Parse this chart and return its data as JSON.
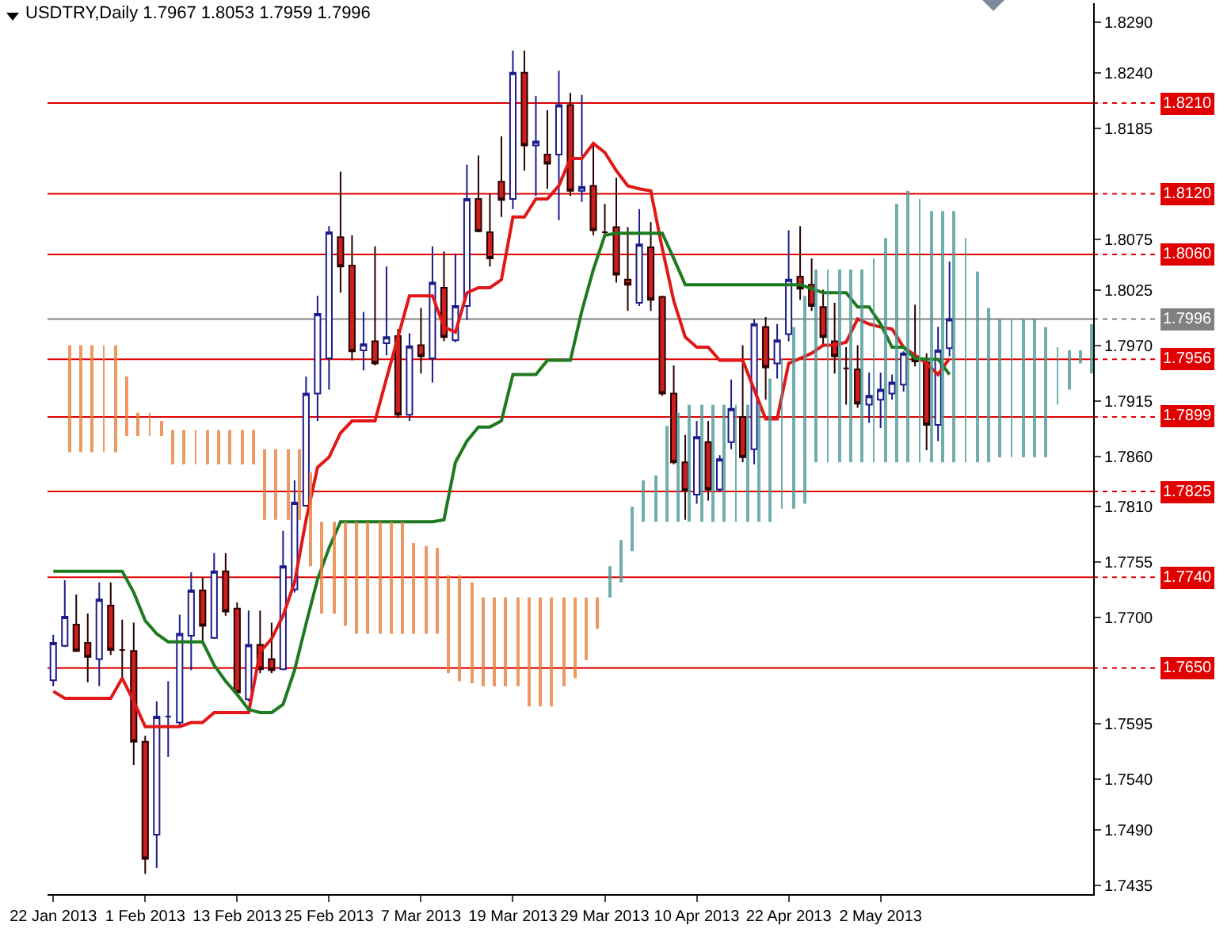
{
  "chart_data": {
    "type": "candlestick",
    "title": "USDTRY,Daily 1.7967 1.8053 1.7959 1.7996",
    "categories": [
      "22 Jan 2013",
      null,
      null,
      null,
      null,
      null,
      null,
      null,
      "1 Feb 2013",
      null,
      null,
      null,
      null,
      null,
      null,
      null,
      "13 Feb 2013",
      null,
      null,
      null,
      null,
      null,
      null,
      null,
      "25 Feb 2013",
      null,
      null,
      null,
      null,
      null,
      null,
      null,
      "7 Mar 2013",
      null,
      null,
      null,
      null,
      null,
      null,
      null,
      "19 Mar 2013",
      null,
      null,
      null,
      null,
      null,
      null,
      null,
      "29 Mar 2013",
      null,
      null,
      null,
      null,
      null,
      null,
      null,
      "10 Apr 2013",
      null,
      null,
      null,
      null,
      null,
      null,
      null,
      "22 Apr 2013",
      null,
      null,
      null,
      null,
      null,
      null,
      null,
      "2 May 2013",
      null,
      null,
      null,
      null,
      null,
      null,
      null,
      null,
      null,
      null,
      null,
      null,
      null,
      null,
      null,
      null,
      null,
      null
    ],
    "ylim": [
      1.7426,
      1.8309
    ],
    "yticks": [
      {
        "value": 1.829,
        "label": "1.8290"
      },
      {
        "value": 1.824,
        "label": "1.8240"
      },
      1.8185,
      1.8075,
      1.8025,
      {
        "value": 1.797,
        "label": "1.7970"
      },
      1.7915,
      {
        "value": 1.786,
        "label": "1.7860"
      },
      {
        "value": 1.781,
        "label": "1.7810"
      },
      1.7755,
      {
        "value": 1.77,
        "label": "1.7700"
      },
      1.7595,
      {
        "value": 1.754,
        "label": "1.7540"
      },
      {
        "value": 1.749,
        "label": "1.7490"
      },
      1.7435
    ],
    "ohlc": [
      [
        1.7638,
        1.7683,
        1.7632,
        1.7675
      ],
      [
        1.7672,
        1.7737,
        1.7671,
        1.7701
      ],
      [
        1.7693,
        1.7723,
        1.7666,
        1.7667
      ],
      [
        1.7675,
        1.7704,
        1.7636,
        1.7661
      ],
      [
        1.7659,
        1.7735,
        1.7632,
        1.7718
      ],
      [
        1.7712,
        1.7735,
        1.7663,
        1.7668
      ],
      [
        1.7668,
        1.7698,
        1.764,
        1.7668
      ],
      [
        1.7667,
        1.7695,
        1.7554,
        1.7577
      ],
      [
        1.7577,
        1.7583,
        1.7446,
        1.7461
      ],
      [
        1.7485,
        1.7617,
        1.7452,
        1.7602
      ],
      [
        1.7602,
        1.7637,
        1.7562,
        1.7602
      ],
      [
        1.7596,
        1.7703,
        1.7593,
        1.7684
      ],
      [
        1.7682,
        1.7745,
        1.7648,
        1.7727
      ],
      [
        1.7727,
        1.774,
        1.7676,
        1.7692
      ],
      [
        1.768,
        1.7764,
        1.7679,
        1.7746
      ],
      [
        1.7746,
        1.7764,
        1.7702,
        1.7706
      ],
      [
        1.7709,
        1.7715,
        1.7622,
        1.7626
      ],
      [
        1.7619,
        1.7707,
        1.7617,
        1.7673
      ],
      [
        1.7673,
        1.7707,
        1.7645,
        1.7649
      ],
      [
        1.7659,
        1.7695,
        1.7645,
        1.7648
      ],
      [
        1.7649,
        1.7786,
        1.7648,
        1.7751
      ],
      [
        1.7728,
        1.7836,
        1.7725,
        1.7814
      ],
      [
        1.7811,
        1.7939,
        1.781,
        1.7922
      ],
      [
        1.7922,
        1.8019,
        1.7895,
        1.8001
      ],
      [
        1.7957,
        1.8088,
        1.7926,
        1.8082
      ],
      [
        1.8077,
        1.8142,
        1.8022,
        1.8048
      ],
      [
        1.8049,
        1.8079,
        1.7955,
        1.7964
      ],
      [
        1.7965,
        1.8003,
        1.7945,
        1.7971
      ],
      [
        1.7974,
        1.8068,
        1.795,
        1.7952
      ],
      [
        1.7972,
        1.8048,
        1.796,
        1.7978
      ],
      [
        1.7979,
        1.7986,
        1.7898,
        1.7901
      ],
      [
        1.7901,
        1.7982,
        1.7895,
        1.7969
      ],
      [
        1.797,
        1.8007,
        1.7942,
        1.7959
      ],
      [
        1.7957,
        1.8068,
        1.7933,
        1.8032
      ],
      [
        1.8027,
        1.8063,
        1.7974,
        1.7978
      ],
      [
        1.7975,
        1.8061,
        1.7973,
        1.8009
      ],
      [
        1.8009,
        1.8149,
        1.7995,
        1.8115
      ],
      [
        1.8115,
        1.8158,
        1.8082,
        1.8083
      ],
      [
        1.8082,
        1.812,
        1.8048,
        1.8056
      ],
      [
        1.8132,
        1.8177,
        1.8097,
        1.8114
      ],
      [
        1.8115,
        1.8262,
        1.8105,
        1.824
      ],
      [
        1.824,
        1.8262,
        1.8143,
        1.8168
      ],
      [
        1.8168,
        1.8217,
        1.8118,
        1.8172
      ],
      [
        1.8159,
        1.8203,
        1.8125,
        1.815
      ],
      [
        1.8159,
        1.8242,
        1.8094,
        1.8208
      ],
      [
        1.8208,
        1.822,
        1.8118,
        1.8123
      ],
      [
        1.8123,
        1.8218,
        1.8112,
        1.8127
      ],
      [
        1.8128,
        1.817,
        1.8079,
        1.8084
      ],
      [
        1.8082,
        1.811,
        1.8079,
        1.8082
      ],
      [
        1.8087,
        1.8136,
        1.8032,
        1.804
      ],
      [
        1.8035,
        1.8087,
        1.8004,
        1.803
      ],
      [
        1.8012,
        1.8105,
        1.8009,
        1.807
      ],
      [
        1.8067,
        1.8092,
        1.8004,
        1.8015
      ],
      [
        1.8018,
        1.8019,
        1.792,
        1.7922
      ],
      [
        1.7922,
        1.795,
        1.7852,
        1.7854
      ],
      [
        1.7854,
        1.7881,
        1.7797,
        1.7826
      ],
      [
        1.7822,
        1.7895,
        1.7813,
        1.7879
      ],
      [
        1.7874,
        1.7895,
        1.7816,
        1.7827
      ],
      [
        1.7827,
        1.7861,
        1.7825,
        1.7857
      ],
      [
        1.7874,
        1.7936,
        1.7867,
        1.7907
      ],
      [
        1.7899,
        1.797,
        1.7854,
        1.7859
      ],
      [
        1.7867,
        1.7996,
        1.7852,
        1.7991
      ],
      [
        1.7988,
        1.7998,
        1.7916,
        1.7948
      ],
      [
        1.7952,
        1.7991,
        1.7937,
        1.7975
      ],
      [
        1.7981,
        1.8084,
        1.7974,
        1.8035
      ],
      [
        1.8038,
        1.8088,
        1.8015,
        1.8026
      ],
      [
        1.803,
        1.8056,
        1.8004,
        1.8009
      ],
      [
        1.8008,
        1.8025,
        1.7968,
        1.7978
      ],
      [
        1.7974,
        1.8012,
        1.7942,
        1.7959
      ],
      [
        1.7947,
        1.7968,
        1.7911,
        1.7947
      ],
      [
        1.7946,
        1.797,
        1.7908,
        1.7912
      ],
      [
        1.7911,
        1.7943,
        1.7893,
        1.792
      ],
      [
        1.7916,
        1.7943,
        1.7888,
        1.7926
      ],
      [
        1.7922,
        1.7941,
        1.7916,
        1.7933
      ],
      [
        1.7931,
        1.7964,
        1.7924,
        1.7962
      ],
      [
        1.7959,
        1.801,
        1.7949,
        1.7954
      ],
      [
        1.7953,
        1.7962,
        1.7866,
        1.7891
      ],
      [
        1.7891,
        1.7988,
        1.7875,
        1.7965
      ],
      [
        1.7967,
        1.8053,
        1.7959,
        1.7996
      ],
      null,
      null,
      null,
      null,
      null,
      null,
      null,
      null,
      null,
      null,
      null,
      null
    ],
    "series": [
      {
        "type": "bar",
        "color": "#e8803c",
        "values": [
          null,
          0.0106,
          0.0106,
          0.0106,
          0.0106,
          0.0106,
          0.0059,
          0.0023,
          0.0023,
          0.0015,
          0.0034,
          0.0034,
          0.0034,
          0.0034,
          0.0034,
          0.0034,
          0.0034,
          0.0034,
          0.007,
          0.007,
          0.007,
          0.007,
          0.0093,
          0.0091,
          0.0091,
          0.0103,
          0.0111,
          0.0111,
          0.0111,
          0.0111,
          0.0111,
          0.009,
          0.0087,
          0.0085,
          0.0097,
          0.0105,
          0.01,
          0.0088,
          0.0088,
          0.0088,
          0.0088,
          0.0108,
          0.0108,
          0.0108,
          0.0088,
          0.008,
          0.0062,
          0.0031,
          null,
          null,
          null,
          null,
          null,
          null,
          null,
          null,
          null,
          null,
          null,
          null,
          null,
          null,
          null,
          null,
          null,
          null,
          null,
          null,
          null,
          null,
          null,
          null,
          null,
          null,
          null,
          null,
          null,
          null,
          null,
          null,
          null,
          null,
          null,
          null,
          null,
          null,
          null,
          null,
          null,
          null,
          null
        ],
        "base": [
          null,
          1.7864,
          1.7864,
          1.7864,
          1.7864,
          1.7864,
          1.788,
          1.788,
          1.788,
          1.788,
          1.7852,
          1.7852,
          1.7852,
          1.7852,
          1.7852,
          1.7852,
          1.7852,
          1.7852,
          1.7797,
          1.7797,
          1.7797,
          1.7797,
          1.7751,
          1.7704,
          1.7704,
          1.7692,
          1.7684,
          1.7684,
          1.7684,
          1.7684,
          1.7684,
          1.7684,
          1.7684,
          1.7684,
          1.7645,
          1.7637,
          1.7635,
          1.7632,
          1.7632,
          1.7632,
          1.7632,
          1.7612,
          1.7612,
          1.7612,
          1.7632,
          1.764,
          1.7658,
          1.7689,
          null,
          null,
          null,
          null,
          null,
          null,
          null,
          null,
          null,
          null,
          null,
          null,
          null,
          null,
          null,
          null,
          null,
          null,
          null,
          null,
          null,
          null,
          null,
          null,
          null,
          null,
          null,
          null,
          null,
          null,
          null,
          null,
          null,
          null,
          null,
          null,
          null,
          null,
          null,
          null,
          null,
          null,
          null
        ]
      },
      {
        "type": "bar",
        "color": "#4f9a9a",
        "values": [
          null,
          null,
          null,
          null,
          null,
          null,
          null,
          null,
          null,
          null,
          null,
          null,
          null,
          null,
          null,
          null,
          null,
          null,
          null,
          null,
          null,
          null,
          null,
          null,
          null,
          null,
          null,
          null,
          null,
          null,
          null,
          null,
          null,
          null,
          null,
          null,
          null,
          null,
          null,
          null,
          null,
          null,
          null,
          null,
          null,
          null,
          null,
          null,
          0.0031,
          0.0042,
          0.0044,
          0.0041,
          0.0046,
          0.0095,
          0.0108,
          0.0116,
          0.0116,
          0.0116,
          0.0116,
          0.0116,
          0.0116,
          0.0116,
          0.0142,
          0.0149,
          0.018,
          0.0206,
          0.0191,
          0.0191,
          0.0191,
          0.0191,
          0.0191,
          0.0202,
          0.0222,
          0.0256,
          0.0269,
          0.0261,
          0.0249,
          0.0249,
          0.0249,
          0.0222,
          0.0189,
          0.0153,
          0.0137,
          0.0137,
          0.0137,
          0.0137,
          0.0129,
          0.0057,
          0.0039,
          0.0013,
          0.0049
        ],
        "base": [
          null,
          null,
          null,
          null,
          null,
          null,
          null,
          null,
          null,
          null,
          null,
          null,
          null,
          null,
          null,
          null,
          null,
          null,
          null,
          null,
          null,
          null,
          null,
          null,
          null,
          null,
          null,
          null,
          null,
          null,
          null,
          null,
          null,
          null,
          null,
          null,
          null,
          null,
          null,
          null,
          null,
          null,
          null,
          null,
          null,
          null,
          null,
          null,
          1.772,
          1.7735,
          1.7766,
          1.7795,
          1.7795,
          1.7795,
          1.7795,
          1.7795,
          1.7795,
          1.7795,
          1.7795,
          1.7795,
          1.7795,
          1.7795,
          1.7795,
          1.7808,
          1.7808,
          1.7813,
          1.7854,
          1.7854,
          1.7854,
          1.7854,
          1.7854,
          1.7854,
          1.7854,
          1.7854,
          1.7854,
          1.7854,
          1.7854,
          1.7854,
          1.7854,
          1.7854,
          1.7854,
          1.7854,
          1.7859,
          1.7859,
          1.7859,
          1.7859,
          1.7859,
          1.7911,
          1.7926,
          1.7952,
          1.7942
        ]
      },
      {
        "type": "line",
        "color": "#e01818",
        "values": [
          1.7627,
          1.762,
          1.762,
          1.762,
          1.762,
          1.762,
          1.764,
          1.7617,
          1.7592,
          1.7592,
          1.7592,
          1.7592,
          1.7596,
          1.7596,
          1.7606,
          1.7606,
          1.7606,
          1.7606,
          1.7666,
          1.7679,
          1.7702,
          1.7735,
          1.7797,
          1.7849,
          1.7859,
          1.7883,
          1.7895,
          1.7895,
          1.7895,
          1.7937,
          1.7978,
          1.8019,
          1.8019,
          1.8019,
          1.7988,
          1.7983,
          1.8022,
          1.8027,
          1.8027,
          1.8035,
          1.8097,
          1.8097,
          1.8115,
          1.8115,
          1.8128,
          1.8155,
          1.8155,
          1.817,
          1.8161,
          1.8143,
          1.8128,
          1.8125,
          1.8123,
          1.8066,
          1.8014,
          1.7978,
          1.7968,
          1.7968,
          1.7955,
          1.7955,
          1.7955,
          1.7926,
          1.7897,
          1.7897,
          1.7952,
          1.7957,
          1.7962,
          1.797,
          1.797,
          1.7973,
          1.7996,
          1.7991,
          1.7988,
          1.7986,
          1.7968,
          1.796,
          1.7952,
          1.7941,
          1.7957,
          null,
          null,
          null,
          null,
          null,
          null,
          null,
          null,
          null,
          null,
          null,
          null
        ]
      },
      {
        "type": "line",
        "color": "#1e7a1e",
        "values": [
          1.7746,
          1.7746,
          1.7746,
          1.7746,
          1.7746,
          1.7746,
          1.7746,
          1.7725,
          1.7697,
          1.7684,
          1.7676,
          1.7676,
          1.7676,
          1.7676,
          1.7653,
          1.7637,
          1.7624,
          1.7609,
          1.7606,
          1.7606,
          1.7614,
          1.7648,
          1.7694,
          1.7738,
          1.7769,
          1.7795,
          1.7795,
          1.7795,
          1.7795,
          1.7795,
          1.7795,
          1.7795,
          1.7795,
          1.7795,
          1.7797,
          1.7854,
          1.7875,
          1.7889,
          1.7889,
          1.7895,
          1.7941,
          1.7941,
          1.7941,
          1.7955,
          1.7955,
          1.7955,
          1.8004,
          1.8045,
          1.8079,
          1.8081,
          1.8081,
          1.8081,
          1.8081,
          1.8081,
          1.8056,
          1.803,
          1.803,
          1.803,
          1.803,
          1.803,
          1.803,
          1.803,
          1.803,
          1.803,
          1.803,
          1.803,
          1.8026,
          1.8022,
          1.8022,
          1.8022,
          1.8008,
          1.8008,
          1.7991,
          1.7968,
          1.7968,
          1.7957,
          1.7956,
          1.7956,
          1.7941,
          null,
          null,
          null,
          null,
          null,
          null,
          null,
          null,
          null,
          null,
          null,
          null
        ]
      }
    ],
    "ref_lines": [
      {
        "axis": "y",
        "value": 1.821,
        "label": "1.8210",
        "color": "#e00000"
      },
      {
        "axis": "y",
        "value": 1.812,
        "label": "1.8120",
        "color": "#e00000"
      },
      {
        "axis": "y",
        "value": 1.806,
        "label": "1.8060",
        "color": "#e00000"
      },
      {
        "axis": "y",
        "value": 1.7996,
        "label": "1.7996",
        "color": "#808080"
      },
      {
        "axis": "y",
        "value": 1.7956,
        "label": "1.7956",
        "color": "#e00000"
      },
      {
        "axis": "y",
        "value": 1.7899,
        "label": "1.7899",
        "color": "#e00000"
      },
      {
        "axis": "y",
        "value": 1.7825,
        "label": "1.7825",
        "color": "#e00000"
      },
      {
        "axis": "y",
        "value": 1.774,
        "label": "1.7740",
        "color": "#e00000"
      },
      {
        "axis": "y",
        "value": 1.765,
        "label": "1.7650",
        "color": "#e00000"
      }
    ]
  }
}
